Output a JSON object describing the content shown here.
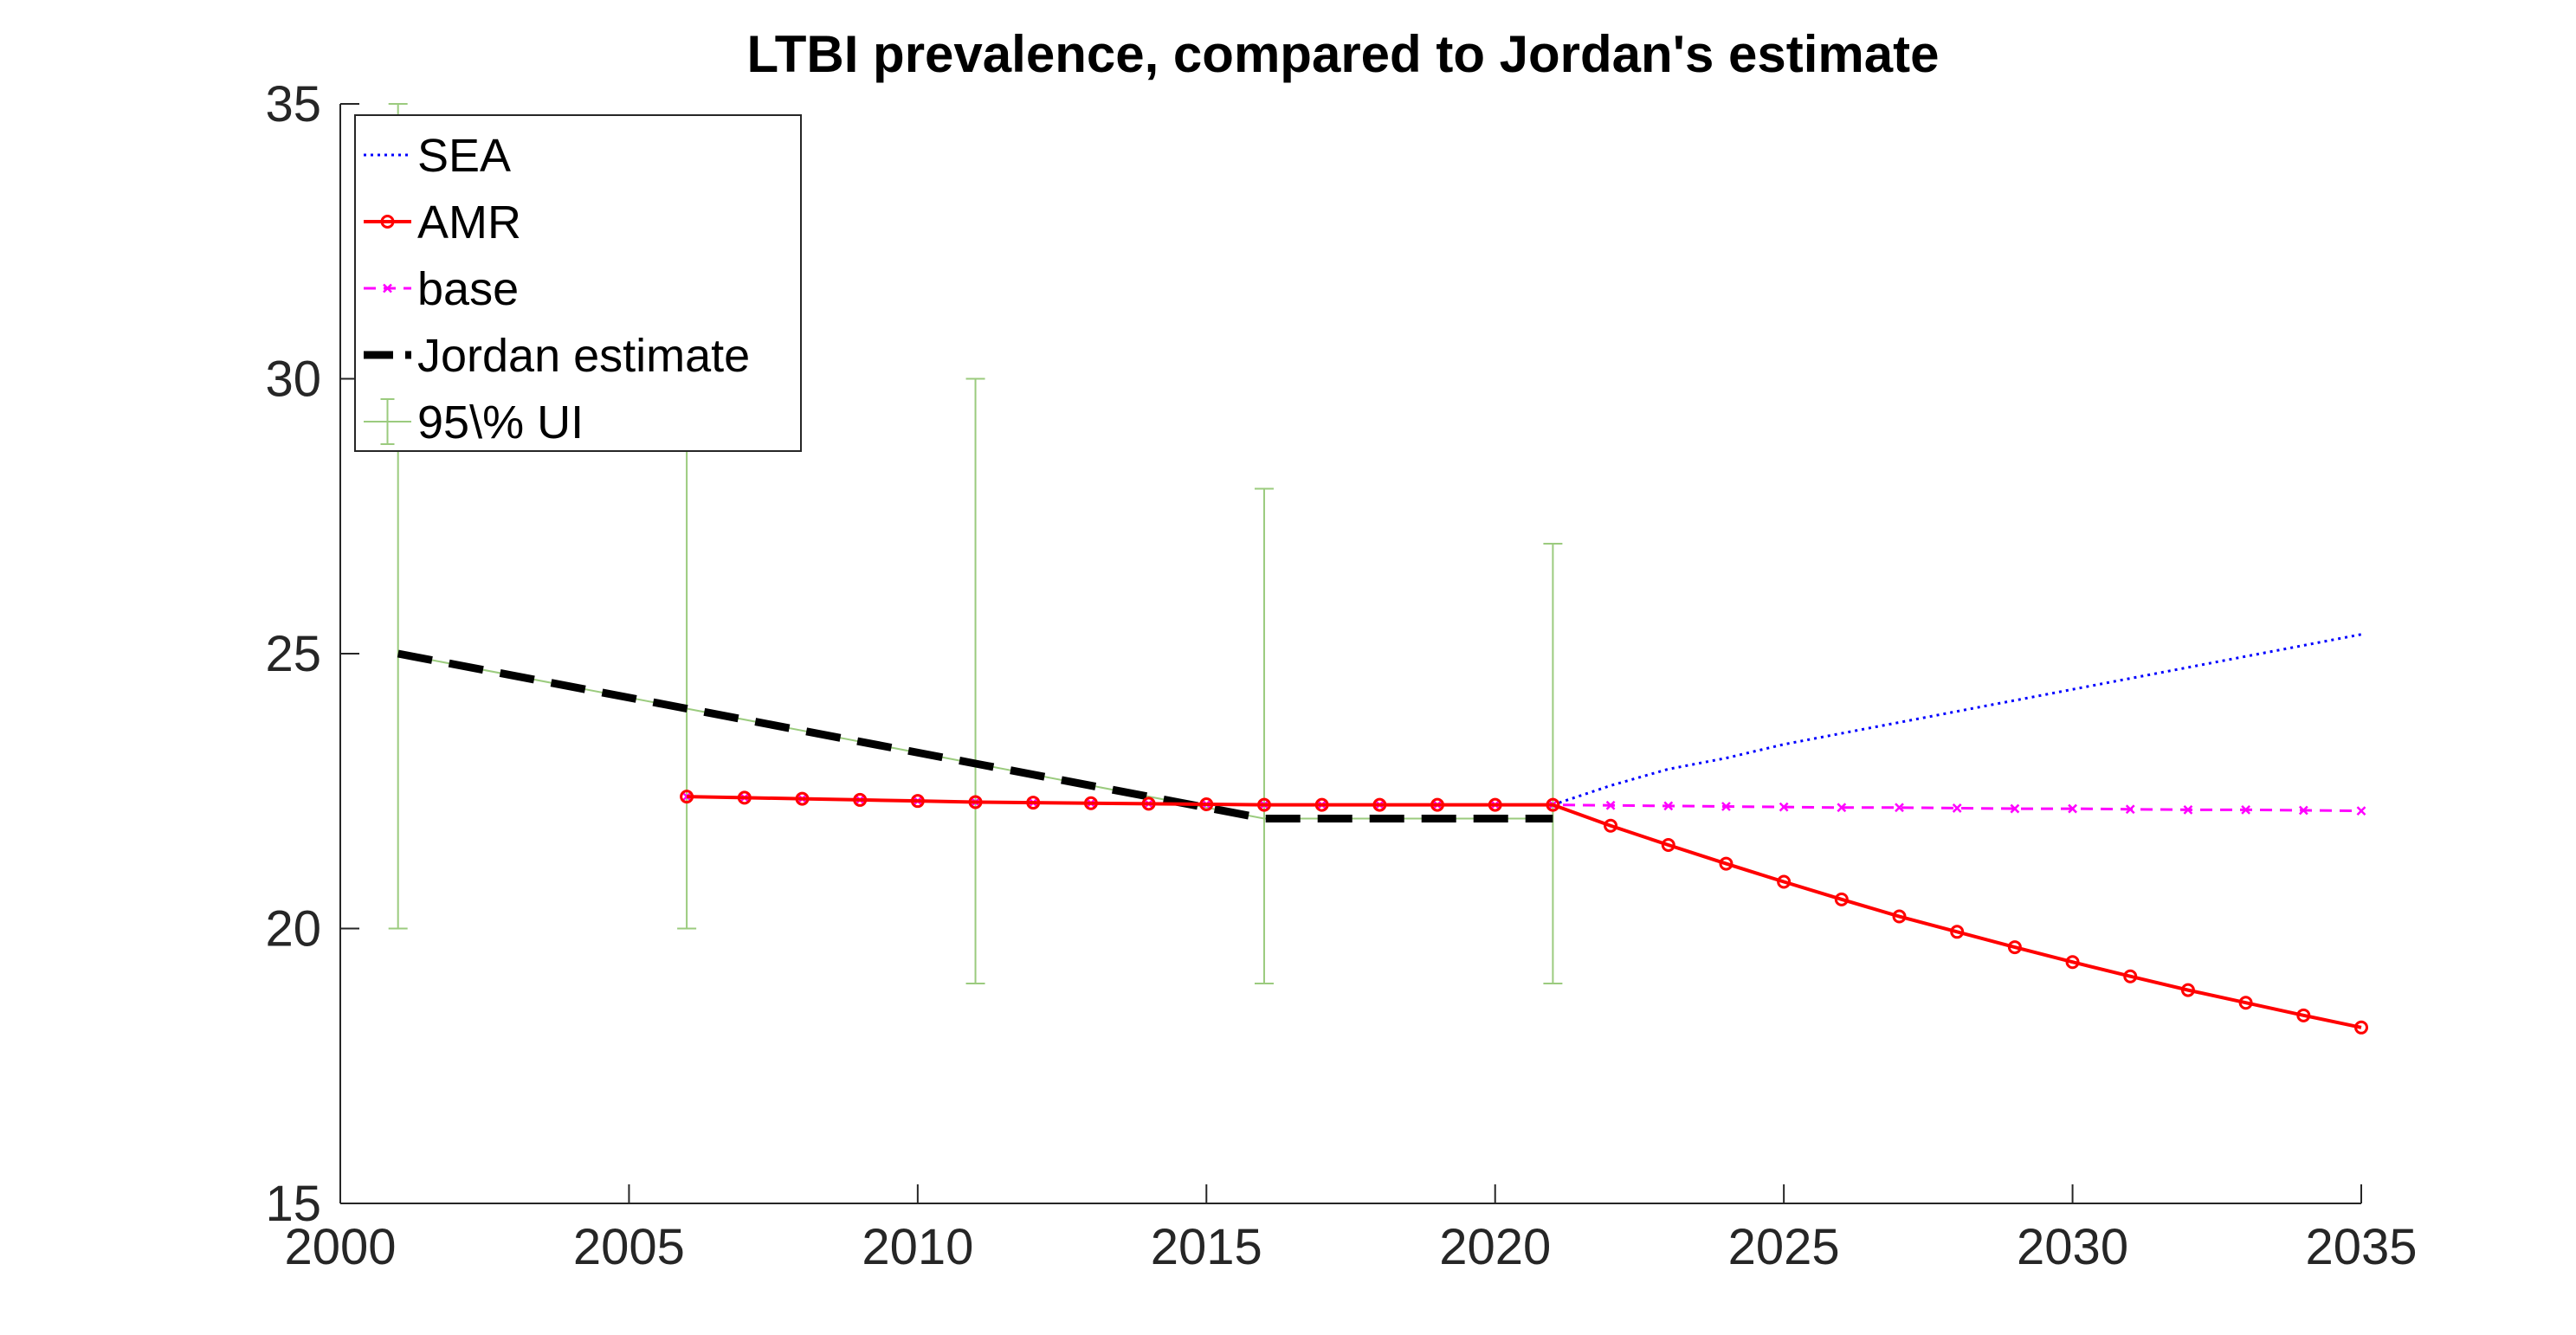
{
  "chart_data": {
    "type": "line",
    "title": "LTBI prevalence, compared to Jordan's estimate",
    "xlabel": "",
    "ylabel": "",
    "xlim": [
      2000,
      2035
    ],
    "ylim": [
      15,
      35
    ],
    "x_ticks": [
      "2000",
      "2005",
      "2010",
      "2015",
      "2020",
      "2025",
      "2030",
      "2035"
    ],
    "y_ticks": [
      "15",
      "20",
      "25",
      "30",
      "35"
    ],
    "grid": false,
    "legend_position": "top-left",
    "series": [
      {
        "name": "SEA",
        "color": "#0000ff",
        "style": "dotted",
        "marker": "none",
        "x": [
          2006,
          2007,
          2008,
          2009,
          2010,
          2011,
          2012,
          2013,
          2014,
          2015,
          2016,
          2017,
          2018,
          2019,
          2020,
          2021,
          2022,
          2023,
          2024,
          2025,
          2026,
          2027,
          2028,
          2029,
          2030,
          2031,
          2032,
          2033,
          2034,
          2035
        ],
        "y": [
          22.4,
          22.38,
          22.36,
          22.34,
          22.32,
          22.3,
          22.29,
          22.28,
          22.27,
          22.26,
          22.25,
          22.25,
          22.25,
          22.25,
          22.25,
          22.25,
          22.6,
          22.9,
          23.1,
          23.35,
          23.55,
          23.75,
          23.95,
          24.15,
          24.35,
          24.55,
          24.75,
          24.95,
          25.15,
          25.35
        ]
      },
      {
        "name": "AMR",
        "color": "#ff0000",
        "style": "solid",
        "marker": "circle",
        "x": [
          2006,
          2007,
          2008,
          2009,
          2010,
          2011,
          2012,
          2013,
          2014,
          2015,
          2016,
          2017,
          2018,
          2019,
          2020,
          2021,
          2022,
          2023,
          2024,
          2025,
          2026,
          2027,
          2028,
          2029,
          2030,
          2031,
          2032,
          2033,
          2034,
          2035
        ],
        "y": [
          22.4,
          22.38,
          22.36,
          22.34,
          22.32,
          22.3,
          22.29,
          22.28,
          22.27,
          22.26,
          22.25,
          22.25,
          22.25,
          22.25,
          22.25,
          22.25,
          21.87,
          21.52,
          21.18,
          20.85,
          20.53,
          20.22,
          19.94,
          19.66,
          19.39,
          19.13,
          18.88,
          18.65,
          18.42,
          18.2
        ]
      },
      {
        "name": "base",
        "color": "#ff00ff",
        "style": "dashed",
        "marker": "x",
        "x": [
          2006,
          2007,
          2008,
          2009,
          2010,
          2011,
          2012,
          2013,
          2014,
          2015,
          2016,
          2017,
          2018,
          2019,
          2020,
          2021,
          2022,
          2023,
          2024,
          2025,
          2026,
          2027,
          2028,
          2029,
          2030,
          2031,
          2032,
          2033,
          2034,
          2035
        ],
        "y": [
          22.4,
          22.38,
          22.36,
          22.34,
          22.32,
          22.3,
          22.29,
          22.28,
          22.27,
          22.26,
          22.25,
          22.25,
          22.25,
          22.25,
          22.25,
          22.25,
          22.24,
          22.23,
          22.22,
          22.21,
          22.2,
          22.2,
          22.19,
          22.18,
          22.18,
          22.17,
          22.16,
          22.16,
          22.15,
          22.14
        ]
      },
      {
        "name": "Jordan estimate",
        "color": "#000000",
        "style": "thick-dashed",
        "marker": "none",
        "x": [
          2001,
          2006,
          2011,
          2016,
          2021
        ],
        "y": [
          25,
          24,
          23,
          22,
          22
        ]
      }
    ],
    "error_bars": {
      "name": "95\\% UI",
      "color": "#9bcb7e",
      "x": [
        2001,
        2006,
        2011,
        2016,
        2021
      ],
      "y": [
        25,
        24,
        23,
        22,
        22
      ],
      "lower": [
        20,
        20,
        19,
        19,
        19
      ],
      "upper": [
        35,
        29,
        30,
        28,
        27
      ]
    }
  }
}
